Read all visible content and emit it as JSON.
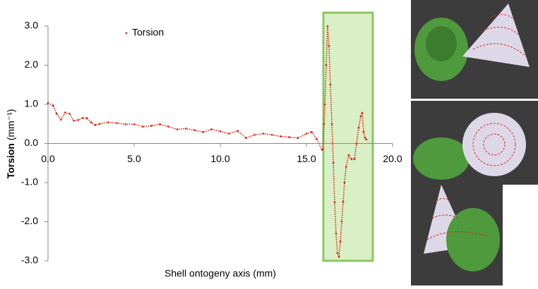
{
  "chart_data": {
    "type": "scatter",
    "x_label": "Shell ontogeny axis (mm)",
    "y_label": {
      "term": "Torsion",
      "unit": "(mm⁻¹)"
    },
    "xlim": [
      0,
      20
    ],
    "ylim": [
      -3,
      3
    ],
    "xticks": [
      {
        "value": 0,
        "label": "0.0"
      },
      {
        "value": 5,
        "label": "5.0"
      },
      {
        "value": 10,
        "label": "10.0"
      },
      {
        "value": 15,
        "label": "15.0"
      },
      {
        "value": 20,
        "label": "20.0"
      }
    ],
    "yticks": [
      {
        "value": -3,
        "label": "-3.0"
      },
      {
        "value": -2,
        "label": "-2.0"
      },
      {
        "value": -1,
        "label": "-1.0"
      },
      {
        "value": 0,
        "label": "0.0"
      },
      {
        "value": 1,
        "label": "1.0"
      },
      {
        "value": 2,
        "label": "2.0"
      },
      {
        "value": 3,
        "label": "3.0"
      }
    ],
    "legend": "top-left",
    "series": [
      {
        "name": "Torsion",
        "color": "#d62c1a",
        "x": [
          0,
          0.3,
          0.5,
          0.75,
          1.0,
          1.25,
          1.5,
          1.75,
          2.0,
          2.25,
          2.5,
          2.75,
          3.0,
          3.5,
          4.0,
          4.5,
          5.0,
          5.5,
          6.0,
          6.5,
          7.0,
          7.5,
          8.0,
          8.5,
          9.0,
          9.5,
          10.0,
          10.5,
          11.0,
          11.5,
          12.0,
          12.5,
          13.0,
          13.5,
          14.0,
          14.5,
          15.0,
          15.3,
          15.6,
          15.9,
          15.94,
          16.02,
          16.07,
          16.15,
          16.23,
          16.31,
          16.39,
          16.48,
          16.56,
          16.64,
          16.72,
          16.8,
          16.89,
          16.97,
          17.05,
          17.13,
          17.21,
          17.3,
          17.46,
          17.62,
          17.79,
          17.91,
          18.03,
          18.16,
          18.24,
          18.32,
          18.4,
          18.48
        ],
        "values": [
          1.03,
          0.97,
          0.76,
          0.61,
          0.79,
          0.76,
          0.58,
          0.6,
          0.65,
          0.65,
          0.54,
          0.47,
          0.5,
          0.54,
          0.52,
          0.49,
          0.49,
          0.43,
          0.45,
          0.49,
          0.43,
          0.36,
          0.38,
          0.34,
          0.29,
          0.36,
          0.31,
          0.25,
          0.32,
          0.14,
          0.22,
          0.25,
          0.22,
          0.18,
          0.16,
          0.14,
          0.25,
          0.29,
          0.11,
          -0.16,
          -0.15,
          0.5,
          1.0,
          2.0,
          3.0,
          2.5,
          1.5,
          0.5,
          -0.5,
          -1.5,
          -2.3,
          -2.8,
          -2.9,
          -2.5,
          -2.0,
          -1.5,
          -1.0,
          -0.6,
          -0.3,
          -0.4,
          -0.4,
          0,
          0.4,
          0.7,
          0.78,
          0.3,
          0.15,
          0.1
        ]
      }
    ]
  }
}
